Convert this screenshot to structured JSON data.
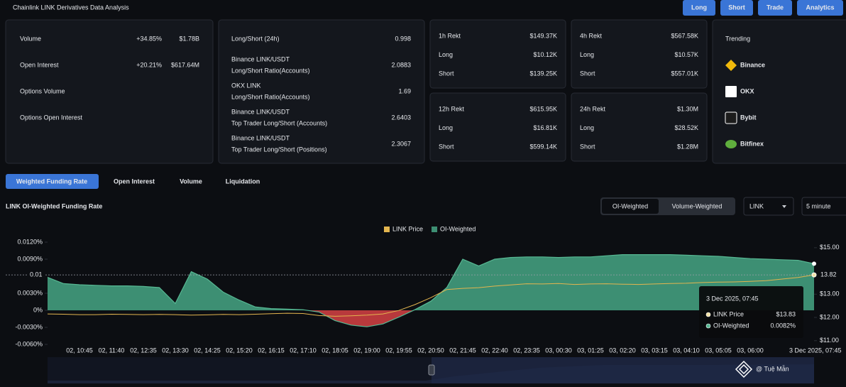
{
  "header": {
    "title": "Chainlink LINK Derivatives Data Analysis",
    "buttons": [
      "Long",
      "Short",
      "Trade",
      "Analytics"
    ]
  },
  "overview": {
    "rows": [
      [
        "Volume",
        "+34.85%",
        "$1.78B"
      ],
      [
        "Open Interest",
        "+20.21%",
        "$617.64M"
      ],
      [
        "Options Volume"
      ],
      [
        "Options Open Interest"
      ]
    ]
  },
  "long_short": {
    "rows": [
      {
        "label": "Long/Short (24h)",
        "value": "0.998"
      },
      {
        "label": "Binance LINK/USDT",
        "sublabel": "Long/Short Ratio(Accounts)",
        "value": "2.0883"
      },
      {
        "label": "OKX LINK",
        "sublabel": "Long/Short Ratio(Accounts)",
        "value": "1.69"
      },
      {
        "label": "Binance LINK/USDT",
        "sublabel": "Top Trader Long/Short (Accounts)",
        "value": "2.6403"
      },
      {
        "label": "Binance LINK/USDT",
        "sublabel": "Top Trader Long/Short (Positions)",
        "value": "2.3067"
      }
    ]
  },
  "rekt": [
    {
      "rows": [
        [
          "1h Rekt",
          "$149.37K"
        ],
        [
          "Long",
          "$10.12K"
        ],
        [
          "Short",
          "$139.25K"
        ]
      ]
    },
    {
      "rows": [
        [
          "4h Rekt",
          "$567.58K"
        ],
        [
          "Long",
          "$10.57K"
        ],
        [
          "Short",
          "$557.01K"
        ]
      ]
    },
    {
      "rows": [
        [
          "12h Rekt",
          "$615.95K"
        ],
        [
          "Long",
          "$16.81K"
        ],
        [
          "Short",
          "$599.14K"
        ]
      ]
    },
    {
      "rows": [
        [
          "24h Rekt",
          "$1.30M"
        ],
        [
          "Long",
          "$28.52K"
        ],
        [
          "Short",
          "$1.28M"
        ]
      ]
    }
  ],
  "trending": {
    "title": "Trending",
    "items": [
      "Binance",
      "OKX",
      "Bybit",
      "Bitfinex"
    ]
  },
  "tabs": [
    "Weighted Funding Rate",
    "Open Interest",
    "Volume",
    "Liquidation"
  ],
  "toggle": [
    "OI-Weighted",
    "Volume-Weighted"
  ],
  "selects": [
    "LINK",
    "5 minute"
  ],
  "watermark": "@ Tuệ Mẫn",
  "chart_data": {
    "type": "combo",
    "title": "LINK OI-Weighted Funding Rate",
    "categories": [
      null,
      null,
      "02, 10:45",
      null,
      "02, 11:40",
      null,
      "02, 12:35",
      null,
      "02, 13:30",
      null,
      "02, 14:25",
      null,
      "02, 15:20",
      null,
      "02, 16:15",
      null,
      "02, 17:10",
      null,
      "02, 18:05",
      null,
      "02, 19:00",
      null,
      "02, 19:55",
      null,
      "02, 20:50",
      null,
      "02, 21:45",
      null,
      "02, 22:40",
      null,
      "02, 23:35",
      null,
      "03, 00:30",
      null,
      "03, 01:25",
      null,
      "03, 02:20",
      null,
      "03, 03:15",
      null,
      "03, 04:10",
      null,
      "03, 05:05",
      null,
      "03, 06:00",
      null,
      null,
      null,
      null
    ],
    "series": [
      {
        "name": "LINK Price",
        "type": "line",
        "axis": "y2",
        "color": "#e3b54f",
        "values": [
          12.15,
          12.14,
          12.12,
          12.12,
          12.14,
          12.13,
          12.12,
          12.13,
          12.12,
          12.1,
          12.11,
          12.13,
          12.12,
          12.14,
          12.16,
          12.18,
          12.17,
          12.08,
          12.05,
          12.07,
          12.1,
          12.15,
          12.3,
          12.55,
          12.85,
          13.2,
          13.25,
          13.28,
          13.35,
          13.4,
          13.45,
          13.44,
          13.46,
          13.42,
          13.44,
          13.45,
          13.43,
          13.42,
          13.44,
          13.46,
          13.47,
          13.5,
          13.52,
          13.53,
          13.55,
          13.58,
          13.65,
          13.72,
          13.83
        ]
      },
      {
        "name": "OI-Weighted",
        "type": "area",
        "color": "#3d8f73",
        "negative_color": "#b8393c",
        "values": [
          0.0058,
          0.0047,
          0.0045,
          0.0044,
          0.0043,
          0.0043,
          0.0042,
          0.004,
          0.0012,
          0.0068,
          0.0055,
          0.0032,
          0.0018,
          0.0006,
          0.0003,
          0.0002,
          0.0001,
          -0.0003,
          -0.0018,
          -0.0026,
          -0.0029,
          -0.0024,
          -0.0012,
          0.0001,
          0.0016,
          0.004,
          0.009,
          0.0078,
          0.009,
          0.0093,
          0.0094,
          0.0094,
          0.0093,
          0.0094,
          0.0094,
          0.0096,
          0.0098,
          0.0098,
          0.0098,
          0.0098,
          0.0097,
          0.0096,
          0.0095,
          0.0093,
          0.0091,
          0.009,
          0.0089,
          0.0088,
          0.0082
        ]
      }
    ],
    "ylim": [
      -0.006,
      0.012
    ],
    "yticks": [
      {
        "value": 0.012,
        "label": "0.0120%"
      },
      {
        "value": 0.009,
        "label": "0.0090%"
      },
      {
        "value": 0.003,
        "label": "0.0030%"
      },
      {
        "value": 0,
        "label": "0%"
      },
      {
        "value": -0.003,
        "label": "-0.0030%"
      },
      {
        "value": -0.006,
        "label": "-0.0060%"
      }
    ],
    "y2lim": [
      10.84,
      15.24
    ],
    "y2ticks": [
      {
        "value": 15,
        "label": "$15.00"
      },
      {
        "value": 13,
        "label": "$13.00"
      },
      {
        "value": 12,
        "label": "$12.00"
      },
      {
        "value": 11,
        "label": "$11.00"
      }
    ],
    "legend": "top",
    "crosshair": {
      "x_label": "3 Dec 2025, 07:45",
      "y_label": "0.01",
      "y2_label": "13.82"
    },
    "tooltip": {
      "title": "3 Dec 2025, 07:45",
      "rows": [
        {
          "name": "LINK Price",
          "value": "$13.83"
        },
        {
          "name": "OI-Weighted",
          "value": "0.0082%"
        }
      ]
    }
  }
}
